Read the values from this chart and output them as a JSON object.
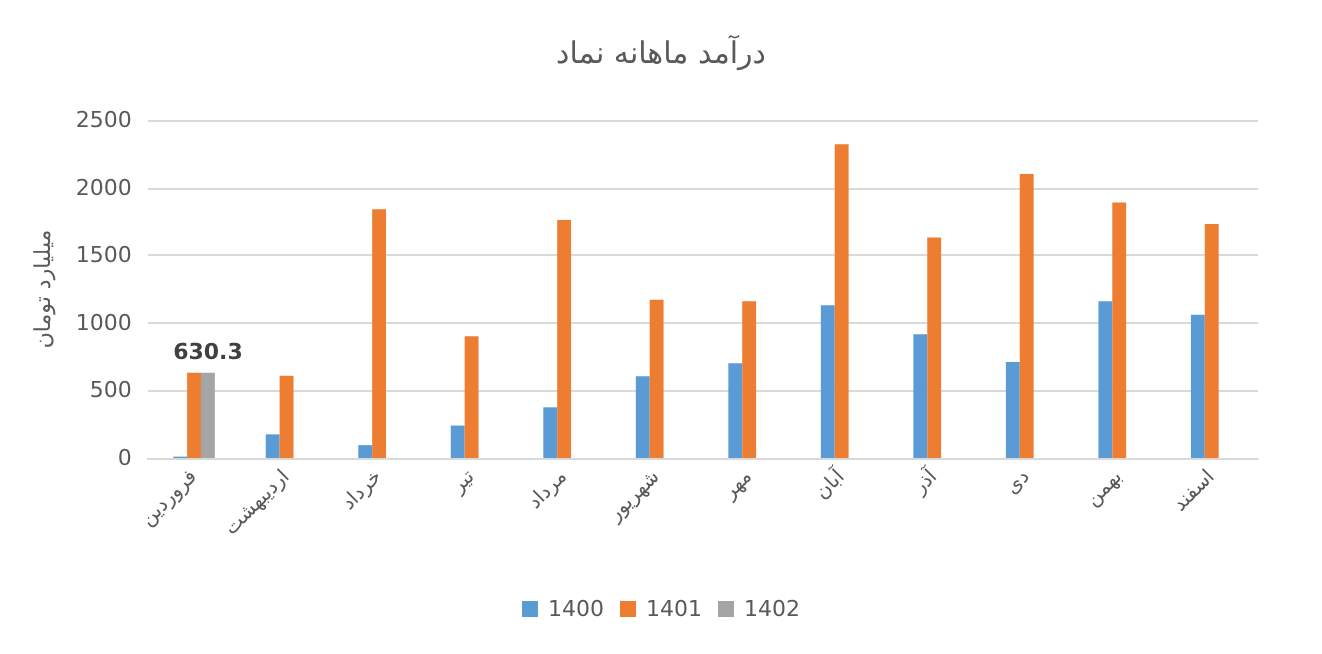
{
  "chart_data": {
    "type": "bar",
    "title": "درآمد ماهانه نماد",
    "ylabel": "میلیارد تومان",
    "categories": [
      "فروردین",
      "اردیبهشت",
      "خرداد",
      "تیر",
      "مرداد",
      "شهریور",
      "مهر",
      "آبان",
      "آذر",
      "دی",
      "بهمن",
      "اسفند"
    ],
    "series": [
      {
        "name": "1400",
        "color": "#5b9bd5",
        "values": [
          10,
          175,
          95,
          240,
          375,
          605,
          700,
          1130,
          915,
          710,
          1160,
          1060
        ]
      },
      {
        "name": "1401",
        "color": "#ed7d31",
        "values": [
          630,
          608,
          1840,
          900,
          1760,
          1170,
          1160,
          2320,
          1630,
          2100,
          1890,
          1730
        ]
      },
      {
        "name": "1402",
        "color": "#a5a5a5",
        "values": [
          630.3,
          null,
          null,
          null,
          null,
          null,
          null,
          null,
          null,
          null,
          null,
          null
        ],
        "value_labels": [
          "630.3",
          null,
          null,
          null,
          null,
          null,
          null,
          null,
          null,
          null,
          null,
          null
        ]
      }
    ],
    "ylim": [
      0,
      2500
    ],
    "yticks": [
      0,
      500,
      1000,
      1500,
      2000,
      2500
    ],
    "grid": "y",
    "legend": "bottom"
  }
}
